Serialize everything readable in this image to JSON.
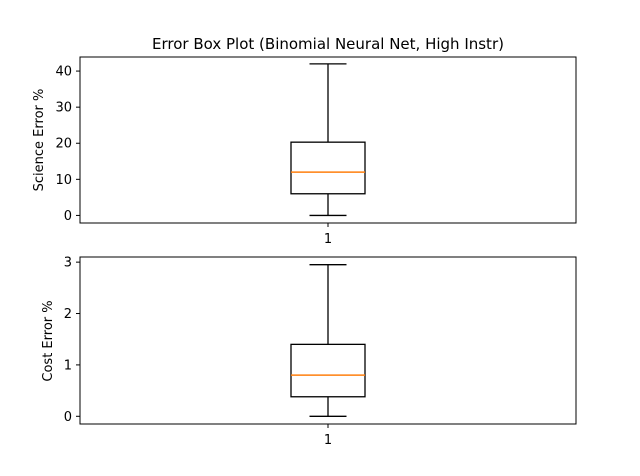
{
  "chart_data": [
    {
      "type": "box",
      "title": "Error Box Plot (Binomial Neural Net, High Instr)",
      "ylabel": "Science Error %",
      "categories": [
        "1"
      ],
      "ylim": [
        -2.1,
        43.9
      ],
      "yticks": [
        0,
        10,
        20,
        30,
        40
      ],
      "boxes": [
        {
          "category": "1",
          "whisker_low": 0,
          "q1": 6,
          "median": 12,
          "q3": 20.3,
          "whisker_high": 42
        }
      ],
      "median_color": "#ff7f0e"
    },
    {
      "type": "box",
      "title": "",
      "ylabel": "Cost Error %",
      "categories": [
        "1"
      ],
      "ylim": [
        -0.15,
        3.1
      ],
      "yticks": [
        0,
        1,
        2,
        3
      ],
      "boxes": [
        {
          "category": "1",
          "whisker_low": 0,
          "q1": 0.38,
          "median": 0.8,
          "q3": 1.4,
          "whisker_high": 2.95
        }
      ],
      "median_color": "#ff7f0e"
    }
  ]
}
